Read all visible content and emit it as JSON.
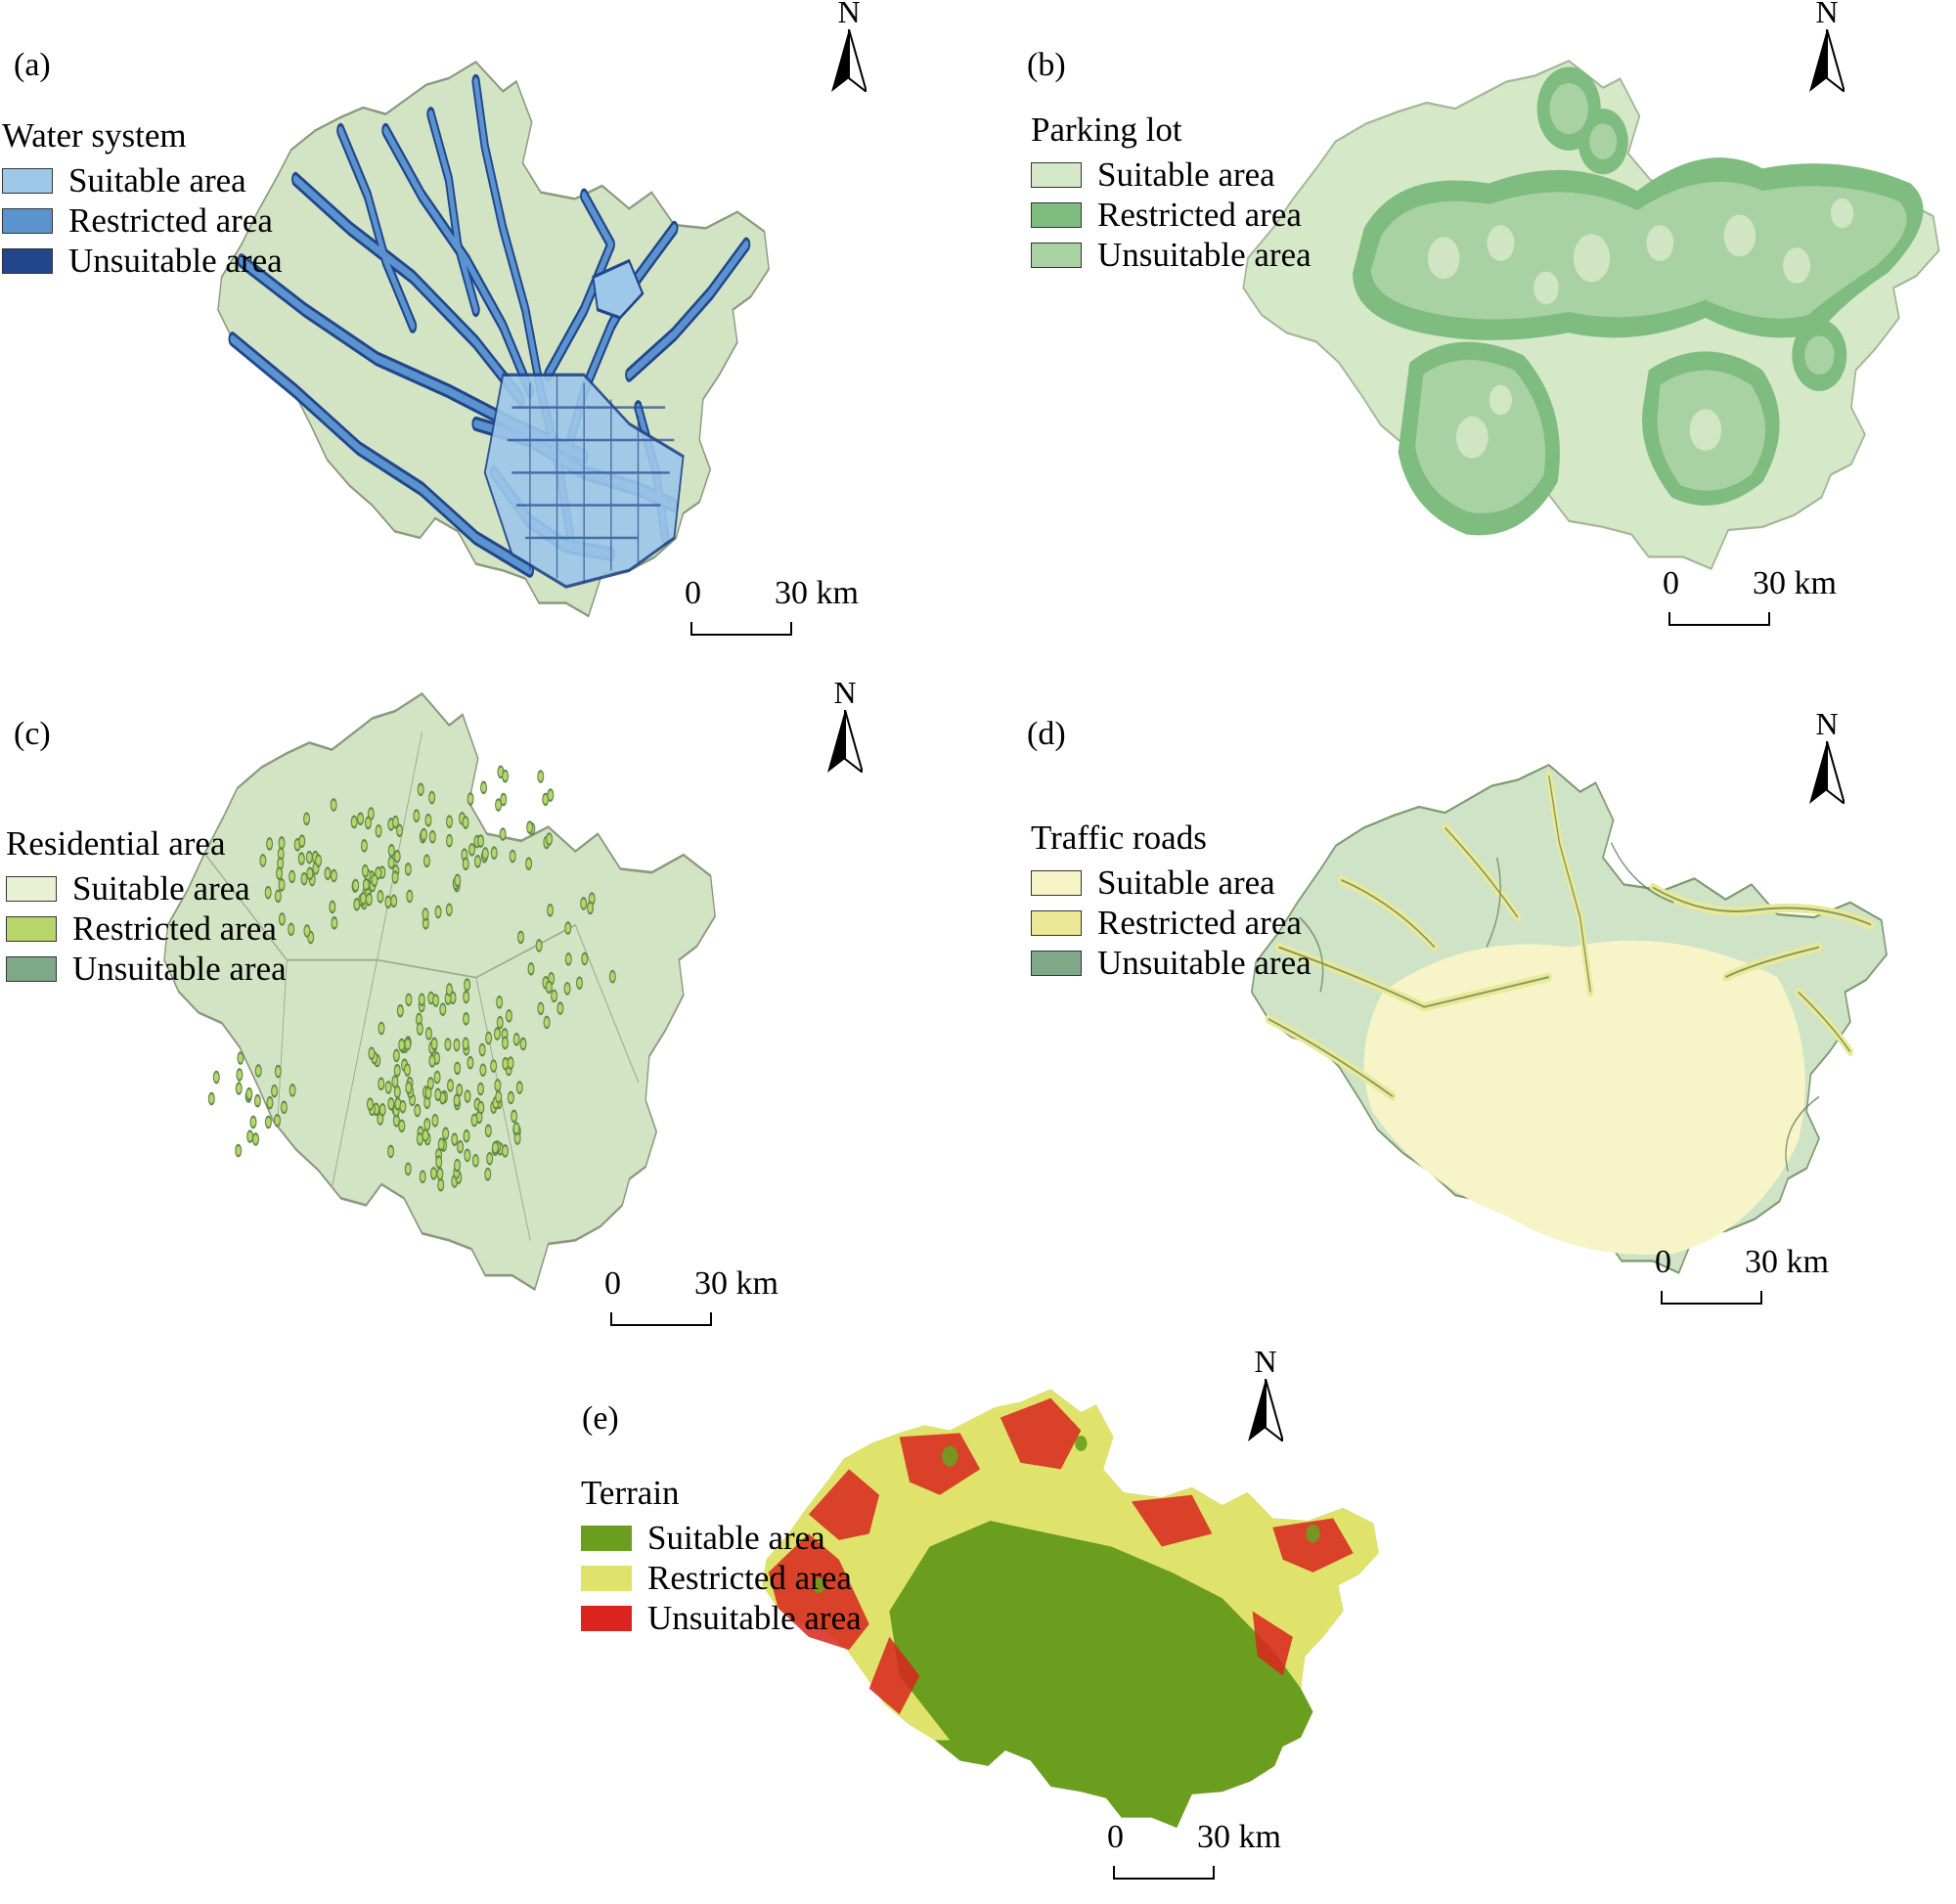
{
  "north_label": "N",
  "scale": {
    "zero": "0",
    "distance": "30 km"
  },
  "panels": [
    {
      "id": "a",
      "tag": "(a)",
      "legend_title": "Water system",
      "items": [
        "Suitable area",
        "Restricted area",
        "Unsuitable area"
      ],
      "colors": [
        "#9dc8ea",
        "#5b93cf",
        "#22468c"
      ],
      "base_color": "#d3e4c4"
    },
    {
      "id": "b",
      "tag": "(b)",
      "legend_title": "Parking lot",
      "items": [
        "Suitable area",
        "Restricted area",
        "Unsuitable area"
      ],
      "colors": [
        "#d5e8c7",
        "#7fbc80",
        "#a9d2a4"
      ],
      "base_color": "#d5e8c7"
    },
    {
      "id": "c",
      "tag": "(c)",
      "legend_title": "Residential area",
      "items": [
        "Suitable area",
        "Restricted area",
        "Unsuitable area"
      ],
      "colors": [
        "#e8f2d2",
        "#b8d56b",
        "#7fa889"
      ],
      "base_color": "#d3e4c4"
    },
    {
      "id": "d",
      "tag": "(d)",
      "legend_title": "Traffic roads",
      "items": [
        "Suitable area",
        "Restricted area",
        "Unsuitable area"
      ],
      "colors": [
        "#f7f4c8",
        "#ece996",
        "#7fa889"
      ],
      "base_color": "#cfe3c6"
    },
    {
      "id": "e",
      "tag": "(e)",
      "legend_title": "Terrain",
      "items": [
        "Suitable area",
        "Restricted area",
        "Unsuitable area"
      ],
      "colors": [
        "#6b9e1f",
        "#dfe36b",
        "#d9251d"
      ],
      "base_color": "#6b9e1f"
    }
  ]
}
